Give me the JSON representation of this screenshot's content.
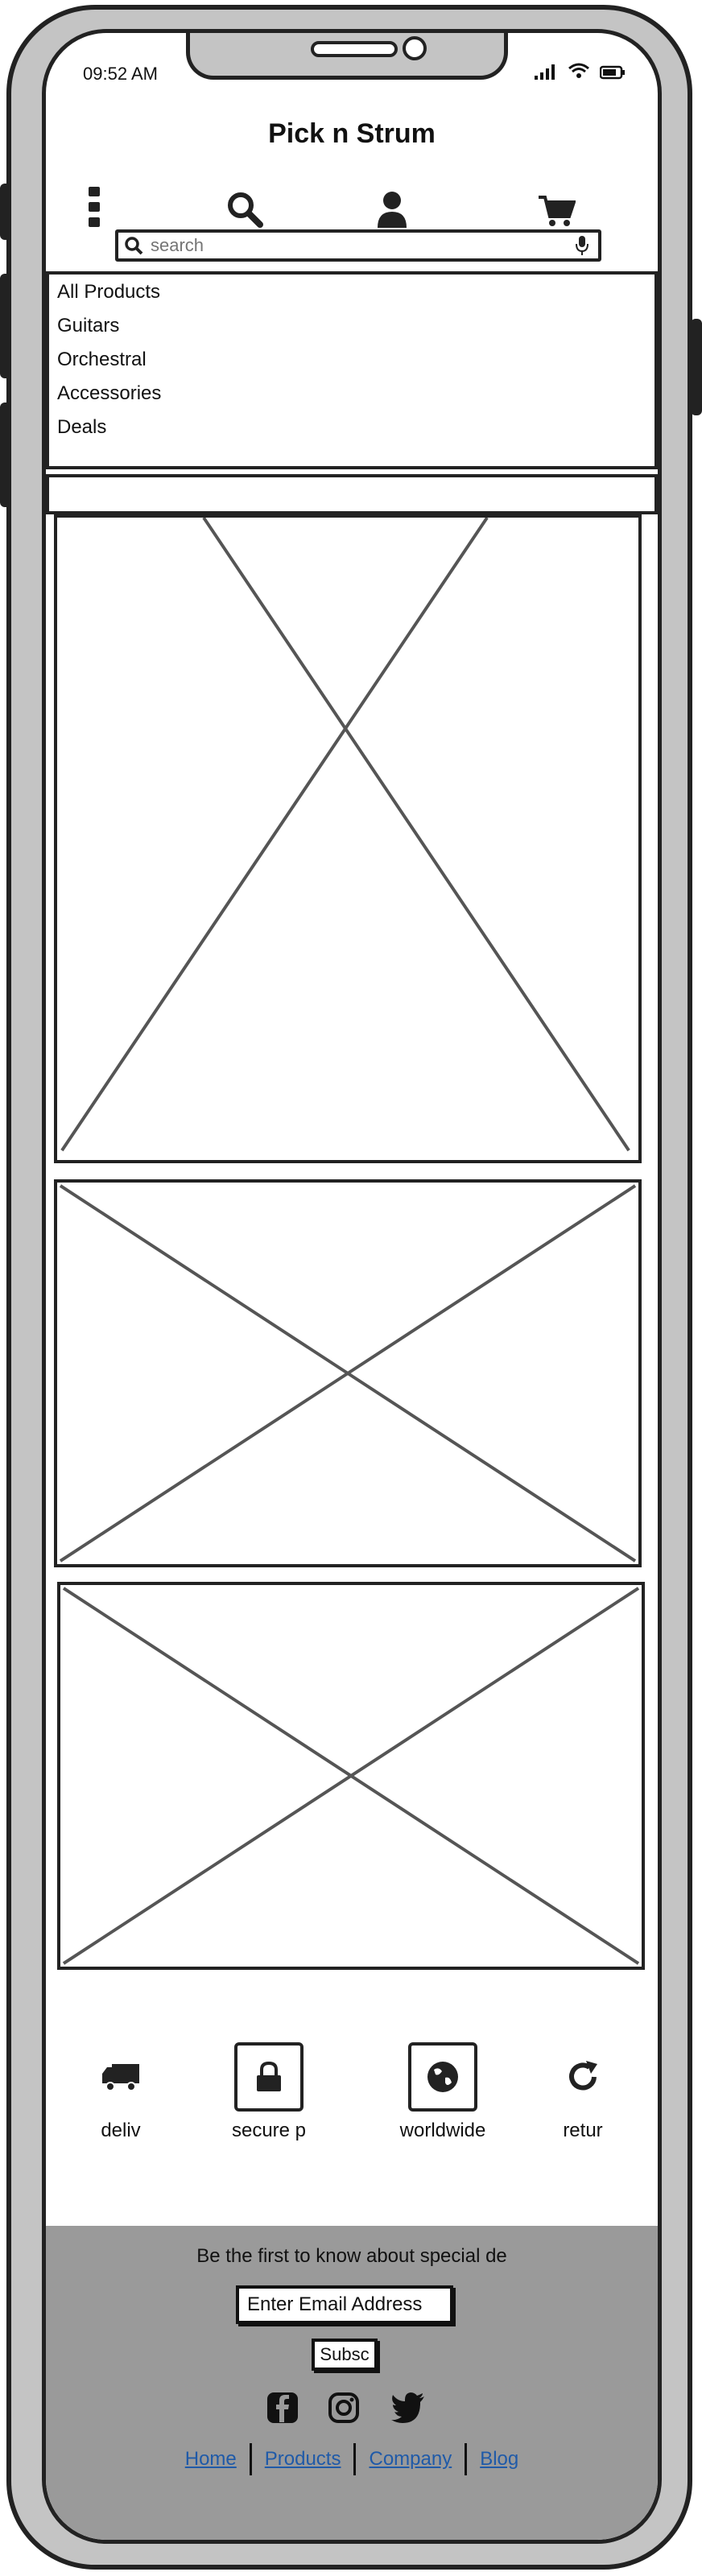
{
  "status_bar": {
    "time": "09:52 AM"
  },
  "header": {
    "title": "Pick n Strum"
  },
  "nav": {
    "icons": [
      "more-vertical-icon",
      "search-icon",
      "user-icon",
      "cart-icon"
    ]
  },
  "search": {
    "placeholder": "search"
  },
  "menu": {
    "items": [
      {
        "label": "All Products"
      },
      {
        "label": "Guitars"
      },
      {
        "label": "Orchestral"
      },
      {
        "label": "Accessories"
      },
      {
        "label": "Deals"
      }
    ]
  },
  "features": [
    {
      "icon": "truck-icon",
      "label": "deliv"
    },
    {
      "icon": "lock-icon",
      "label": "secure p"
    },
    {
      "icon": "globe-icon",
      "label": "worldwide"
    },
    {
      "icon": "refresh-icon",
      "label": "retur"
    }
  ],
  "footer": {
    "signup_text": "Be the first to know about special de",
    "email_placeholder": "Enter Email Address",
    "subscribe_label": "Subsc",
    "social_icons": [
      "facebook-icon",
      "instagram-icon",
      "twitter-icon"
    ],
    "links": [
      {
        "label": "Home"
      },
      {
        "label": "Products"
      },
      {
        "label": "Company"
      },
      {
        "label": "Blog"
      }
    ]
  },
  "colors": {
    "frame": "#c4c4c4",
    "outline": "#222222",
    "footer_bg": "#9a9a9a",
    "link": "#1f5aa8",
    "placeholder_line": "#555555"
  }
}
